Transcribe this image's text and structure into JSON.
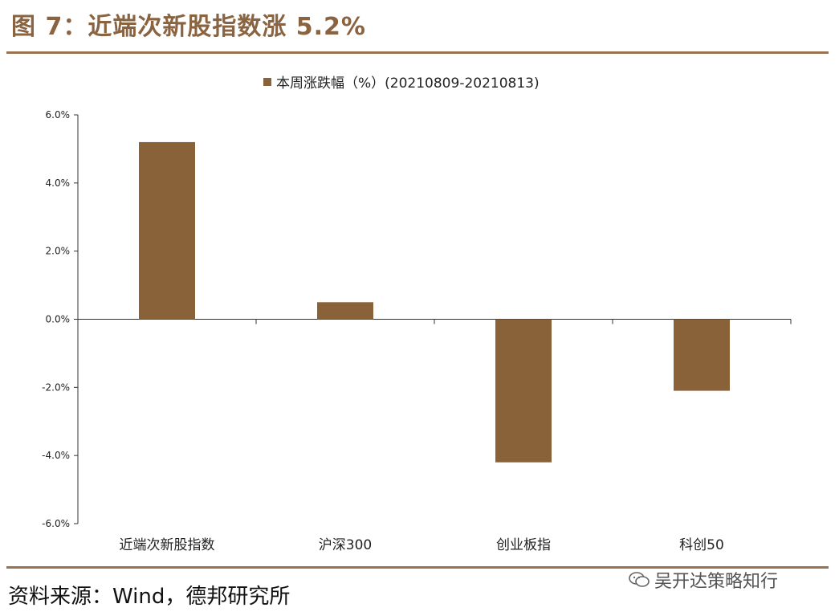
{
  "header": {
    "title": "图 7：近端次新股指数涨 5.2%"
  },
  "footer": {
    "source": "资料来源：Wind，德邦研究所",
    "watermark": "吴开达策略知行",
    "watermark_icon": "wechat-icon"
  },
  "colors": {
    "accent": "#8a6340",
    "bar": "#896239",
    "rule": "#9b7350"
  },
  "chart_data": {
    "type": "bar",
    "title": "",
    "xlabel": "",
    "ylabel": "",
    "categories": [
      "近端次新股指数",
      "沪深300",
      "创业板指",
      "科创50"
    ],
    "series": [
      {
        "name": "本周涨跌幅（%）(20210809-20210813)",
        "values": [
          5.2,
          0.5,
          -4.2,
          -2.1
        ]
      }
    ],
    "ylim": [
      -6.0,
      6.0
    ],
    "yticks": [
      6.0,
      4.0,
      2.0,
      0.0,
      -2.0,
      -4.0,
      -6.0
    ],
    "ytick_labels": [
      "6.0%",
      "4.0%",
      "2.0%",
      "0.0%",
      "-2.0%",
      "-4.0%",
      "-6.0%"
    ],
    "legend": "top-center",
    "grid": false
  }
}
